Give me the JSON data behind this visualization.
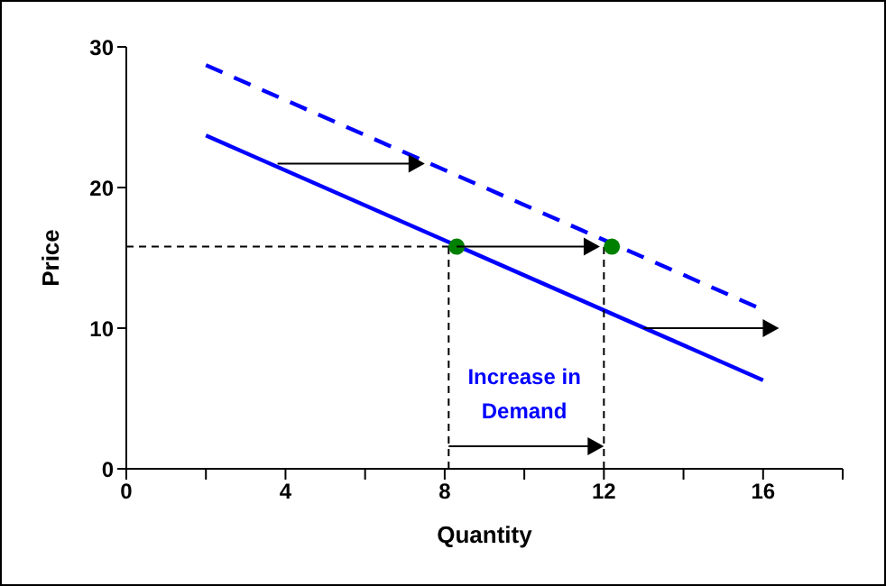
{
  "chart_data": {
    "type": "line",
    "xlabel": "Quantity",
    "ylabel": "Price",
    "xlim": [
      0,
      18
    ],
    "ylim": [
      0,
      30
    ],
    "xticks": [
      0,
      {
        "value": 2,
        "label": null
      },
      4,
      {
        "value": 6,
        "label": null
      },
      8,
      {
        "value": 10,
        "label": null
      },
      12,
      {
        "value": 14,
        "label": null
      },
      16,
      {
        "value": 18,
        "label": null
      }
    ],
    "yticks": [
      0,
      10,
      20,
      30
    ],
    "grid": false,
    "annotations": [
      "Increase in Demand"
    ],
    "series": [
      {
        "color": "#0000ff",
        "x": [
          2,
          16
        ],
        "values": [
          23.7,
          6.3
        ],
        "line_style": "solid",
        "marker": "none"
      },
      {
        "color": "#0000ff",
        "x": [
          2,
          16
        ],
        "values": [
          28.7,
          11.3
        ],
        "line_style": "dashed",
        "marker": "none"
      },
      {
        "color": "#000000",
        "x": [
          0,
          8.3
        ],
        "values": [
          15.8,
          15.8
        ],
        "line_style": "dotted",
        "marker": "none"
      },
      {
        "color": "#000000",
        "x": [
          8.1,
          8.1
        ],
        "values": [
          0,
          15.8
        ],
        "line_style": "dotted",
        "marker": "none"
      },
      {
        "color": "#000000",
        "x": [
          12,
          12
        ],
        "values": [
          0,
          15.8
        ],
        "line_style": "dotted",
        "marker": "none"
      },
      {
        "type": "scatter",
        "color": "#008000",
        "x": [
          8.3,
          12.2
        ],
        "values": [
          15.8,
          15.8
        ],
        "marker": "circle"
      }
    ]
  }
}
